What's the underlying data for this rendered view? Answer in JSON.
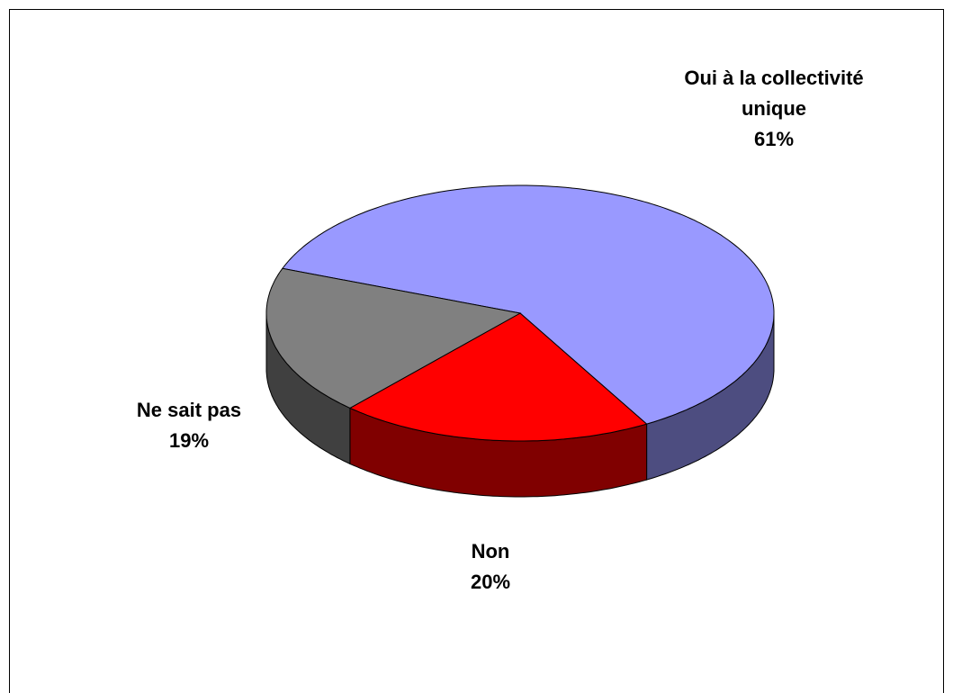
{
  "chart_data": {
    "type": "pie",
    "categories": [
      "Oui à la collectivité unique",
      "Non",
      "Ne sait pas"
    ],
    "values": [
      61,
      20,
      19
    ],
    "value_labels": [
      "61%",
      "20%",
      "19%"
    ],
    "colors": [
      "#9999ff",
      "#ff0000",
      "#808080"
    ]
  }
}
